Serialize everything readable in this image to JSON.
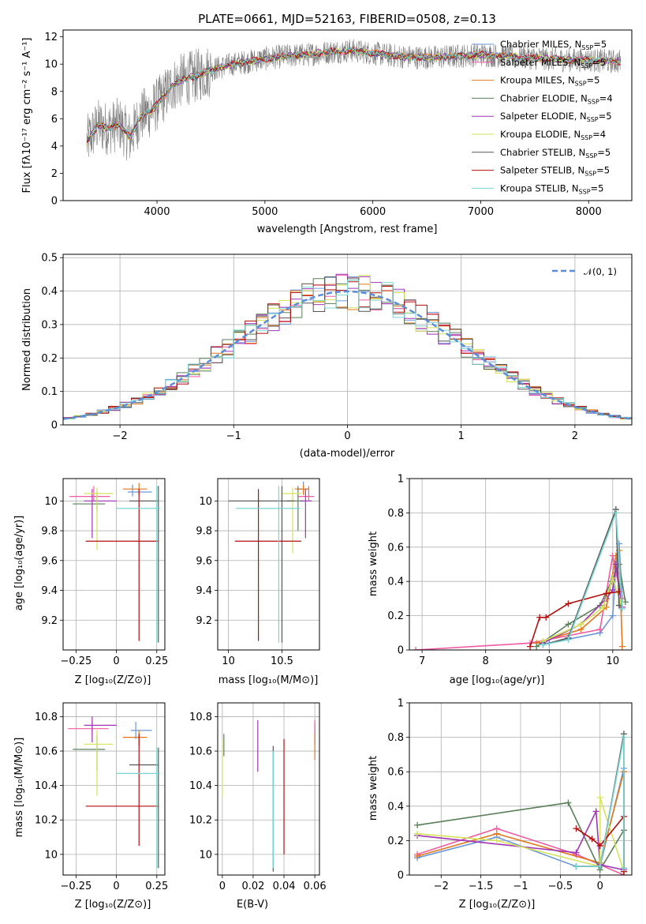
{
  "figure": {
    "title": "PLATE=0661, MJD=52163, FIBERID=0508, z=0.13"
  },
  "series": [
    {
      "name": "Chabrier MILES",
      "nssp": "5",
      "color": "#6d96d6"
    },
    {
      "name": "Salpeter MILES",
      "nssp": "5",
      "color": "#ef5ba1"
    },
    {
      "name": "Kroupa MILES",
      "nssp": "5",
      "color": "#e1771e"
    },
    {
      "name": "Chabrier ELODIE",
      "nssp": "4",
      "color": "#5a7f5a"
    },
    {
      "name": "Salpeter ELODIE",
      "nssp": "5",
      "color": "#9f35b5"
    },
    {
      "name": "Kroupa ELODIE",
      "nssp": "4",
      "color": "#d4e35a"
    },
    {
      "name": "Chabrier STELIB",
      "nssp": "5",
      "color": "#555555"
    },
    {
      "name": "Salpeter STELIB",
      "nssp": "5",
      "color": "#b30f0f"
    },
    {
      "name": "Kroupa STELIB",
      "nssp": "5",
      "color": "#7ad5d0"
    }
  ],
  "chart_data": [
    {
      "id": "spectrum",
      "type": "line",
      "xlabel": "wavelength [Angstrom, rest frame]",
      "ylabel": "Flux [fλ10⁻¹⁷ erg cm⁻² s⁻¹ A⁻¹]",
      "xlim": [
        3130,
        8400
      ],
      "ylim": [
        0,
        12.5
      ],
      "xticks": [
        4000,
        5000,
        6000,
        7000,
        8000
      ],
      "yticks": [
        0,
        2,
        4,
        6,
        8,
        10,
        12
      ],
      "grid": false,
      "legend": "right",
      "data_color": "#808080",
      "continuum_x": [
        3350,
        3450,
        3550,
        3650,
        3750,
        3850,
        3950,
        4050,
        4150,
        4250,
        4350,
        4450,
        4550,
        4700,
        4850,
        5000,
        5200,
        5400,
        5600,
        5800,
        6000,
        6200,
        6400,
        6600,
        6800,
        7000,
        7200,
        7400,
        7600,
        7800,
        8000,
        8200,
        8300
      ],
      "continuum_y": [
        4.3,
        5.5,
        5.3,
        5.6,
        4.6,
        6.2,
        6.6,
        7.5,
        8.5,
        8.9,
        9.1,
        9.4,
        9.7,
        10.0,
        10.2,
        10.4,
        10.6,
        10.7,
        10.9,
        11.0,
        10.8,
        10.6,
        10.5,
        10.5,
        10.6,
        10.7,
        10.6,
        10.5,
        10.4,
        10.3,
        10.3,
        10.2,
        10.2
      ]
    },
    {
      "id": "residuals",
      "type": "histogram",
      "xlabel": "(data-model)/error",
      "ylabel": "Normed distribution",
      "xlim": [
        -2.5,
        2.5
      ],
      "ylim": [
        0,
        0.51
      ],
      "xticks": [
        -2,
        -1,
        0,
        1,
        2
      ],
      "yticks": [
        0.0,
        0.1,
        0.2,
        0.3,
        0.4,
        0.5
      ],
      "grid": true,
      "legend": "top-right",
      "normal_label": "𝒩(0, 1)",
      "normal_color": "#5b8ed6",
      "bin_width": 0.1
    },
    {
      "id": "age_vs_Z",
      "type": "errorbar",
      "xlabel": "Z [log₁₀(Z/Z⊙)]",
      "ylabel": "age  [log₁₀(age/yr)]",
      "xlim": [
        -0.33,
        0.3
      ],
      "ylim": [
        9.0,
        10.15
      ],
      "xticks": [
        -0.25,
        0.0,
        0.25
      ],
      "yticks": [
        9.2,
        9.4,
        9.6,
        9.8,
        10.0
      ],
      "points": [
        {
          "s": 0,
          "x": 0.1,
          "y": 10.06,
          "xe": [
            0.03,
            0.12
          ],
          "ye": [
            0.03,
            0.05
          ]
        },
        {
          "s": 1,
          "x": -0.14,
          "y": 10.03,
          "xe": [
            0.15,
            0.1
          ],
          "ye": [
            0.03,
            0.07
          ]
        },
        {
          "s": 2,
          "x": 0.14,
          "y": 10.08,
          "xe": [
            0.1,
            0.05
          ],
          "ye": [
            0.04,
            0.04
          ]
        },
        {
          "s": 3,
          "x": -0.12,
          "y": 9.98,
          "xe": [
            0.15,
            0.05
          ],
          "ye": [
            0.05,
            0.08
          ]
        },
        {
          "s": 4,
          "x": -0.15,
          "y": 10.0,
          "xe": [
            0.05,
            0.15
          ],
          "ye": [
            0.25,
            0.08
          ]
        },
        {
          "s": 5,
          "x": -0.12,
          "y": 10.05,
          "xe": [
            0.08,
            0.1
          ],
          "ye": [
            0.38,
            0.04
          ]
        },
        {
          "s": 6,
          "x": 0.26,
          "y": 10.0,
          "xe": [
            0.18,
            0.0
          ],
          "ye": [
            0.95,
            0.1
          ]
        },
        {
          "s": 7,
          "x": 0.14,
          "y": 9.73,
          "xe": [
            0.33,
            0.12
          ],
          "ye": [
            0.67,
            0.35
          ]
        },
        {
          "s": 8,
          "x": 0.25,
          "y": 9.95,
          "xe": [
            0.25,
            0.02
          ],
          "ye": [
            0.9,
            0.15
          ]
        }
      ]
    },
    {
      "id": "age_vs_mass",
      "type": "errorbar",
      "xlabel": "mass [log₁₀(M/M⊙)]",
      "ylabel": "",
      "xlim": [
        9.9,
        10.85
      ],
      "ylim": [
        9.0,
        10.15
      ],
      "xticks": [
        10.0,
        10.5
      ],
      "yticks": [
        9.2,
        9.4,
        9.6,
        9.8,
        10.0
      ],
      "points": [
        {
          "s": 0,
          "x": 10.7,
          "y": 10.08,
          "xe": [
            0.05,
            0.05
          ],
          "ye": [
            0.03,
            0.05
          ]
        },
        {
          "s": 1,
          "x": 10.75,
          "y": 10.03,
          "xe": [
            0.1,
            0.05
          ],
          "ye": [
            0.03,
            0.07
          ]
        },
        {
          "s": 2,
          "x": 10.7,
          "y": 10.08,
          "xe": [
            0.08,
            0.05
          ],
          "ye": [
            0.04,
            0.03
          ]
        },
        {
          "s": 3,
          "x": 10.65,
          "y": 10.0,
          "xe": [
            0.1,
            0.05
          ],
          "ye": [
            0.2,
            0.1
          ]
        },
        {
          "s": 4,
          "x": 10.72,
          "y": 10.0,
          "xe": [
            0.05,
            0.06
          ],
          "ye": [
            0.25,
            0.08
          ]
        },
        {
          "s": 5,
          "x": 10.6,
          "y": 10.05,
          "xe": [
            0.1,
            0.08
          ],
          "ye": [
            0.4,
            0.04
          ]
        },
        {
          "s": 6,
          "x": 10.5,
          "y": 10.0,
          "xe": [
            0.5,
            0.12
          ],
          "ye": [
            0.95,
            0.1
          ]
        },
        {
          "s": 7,
          "x": 10.28,
          "y": 9.73,
          "xe": [
            0.22,
            0.4
          ],
          "ye": [
            0.67,
            0.35
          ]
        },
        {
          "s": 8,
          "x": 10.47,
          "y": 9.95,
          "xe": [
            0.4,
            0.2
          ],
          "ye": [
            0.9,
            0.15
          ]
        }
      ]
    },
    {
      "id": "weight_vs_age",
      "type": "line",
      "xlabel": "age  [log₁₀(age/yr)]",
      "ylabel": "mass weight",
      "xlim": [
        6.8,
        10.3
      ],
      "ylim": [
        0,
        1
      ],
      "xticks": [
        7,
        8,
        9,
        10
      ],
      "yticks": [
        0.0,
        0.2,
        0.4,
        0.6,
        0.8,
        1.0
      ],
      "grid": true,
      "lines": [
        {
          "s": 0,
          "x": [
            9.0,
            9.8,
            10.0,
            10.05,
            10.1,
            10.15
          ],
          "y": [
            0.04,
            0.1,
            0.2,
            0.5,
            0.62,
            0.3
          ]
        },
        {
          "s": 1,
          "x": [
            6.9,
            8.7,
            9.8,
            10.0,
            10.05,
            10.15
          ],
          "y": [
            0.0,
            0.04,
            0.12,
            0.55,
            0.45,
            0.3
          ]
        },
        {
          "s": 2,
          "x": [
            8.8,
            9.5,
            9.9,
            10.05,
            10.1,
            10.15
          ],
          "y": [
            0.04,
            0.12,
            0.25,
            0.55,
            0.58,
            0.02
          ]
        },
        {
          "s": 3,
          "x": [
            8.8,
            9.3,
            9.8,
            9.98,
            10.1,
            10.2
          ],
          "y": [
            0.02,
            0.15,
            0.26,
            0.4,
            0.5,
            0.28
          ]
        },
        {
          "s": 4,
          "x": [
            8.9,
            9.5,
            9.9,
            10.0,
            10.05,
            10.15
          ],
          "y": [
            0.04,
            0.15,
            0.3,
            0.35,
            0.5,
            0.25
          ]
        },
        {
          "s": 5,
          "x": [
            8.9,
            9.5,
            9.85,
            10.0,
            10.12
          ],
          "y": [
            0.05,
            0.15,
            0.25,
            0.42,
            0.28
          ]
        },
        {
          "s": 6,
          "x": [
            8.9,
            9.3,
            10.05,
            10.1
          ],
          "y": [
            0.03,
            0.07,
            0.82,
            0.26
          ]
        },
        {
          "s": 7,
          "x": [
            8.7,
            8.85,
            8.95,
            9.3,
            9.9,
            10.1
          ],
          "y": [
            0.02,
            0.19,
            0.19,
            0.27,
            0.33,
            0.34
          ]
        },
        {
          "s": 8,
          "x": [
            8.9,
            9.3,
            10.05,
            10.15
          ],
          "y": [
            0.03,
            0.06,
            0.8,
            0.24
          ]
        }
      ]
    },
    {
      "id": "mass_vs_Z",
      "type": "errorbar",
      "xlabel": "Z [log₁₀(Z/Z⊙)]",
      "ylabel": "mass [log₁₀(M/M⊙)]",
      "xlim": [
        -0.33,
        0.3
      ],
      "ylim": [
        9.88,
        10.88
      ],
      "xticks": [
        -0.25,
        0.0,
        0.25
      ],
      "yticks": [
        10.0,
        10.2,
        10.4,
        10.6,
        10.8
      ],
      "points": [
        {
          "s": 0,
          "x": 0.12,
          "y": 10.72,
          "xe": [
            0.03,
            0.1
          ],
          "ye": [
            0.05,
            0.05
          ]
        },
        {
          "s": 1,
          "x": -0.15,
          "y": 10.73,
          "xe": [
            0.15,
            0.1
          ],
          "ye": [
            0.04,
            0.05
          ]
        },
        {
          "s": 2,
          "x": 0.14,
          "y": 10.68,
          "xe": [
            0.1,
            0.05
          ],
          "ye": [
            0.05,
            0.04
          ]
        },
        {
          "s": 3,
          "x": -0.12,
          "y": 10.61,
          "xe": [
            0.15,
            0.05
          ],
          "ye": [
            0.12,
            0.08
          ]
        },
        {
          "s": 4,
          "x": -0.15,
          "y": 10.75,
          "xe": [
            0.05,
            0.15
          ],
          "ye": [
            0.1,
            0.05
          ]
        },
        {
          "s": 5,
          "x": -0.12,
          "y": 10.64,
          "xe": [
            0.08,
            0.1
          ],
          "ye": [
            0.3,
            0.08
          ]
        },
        {
          "s": 6,
          "x": 0.26,
          "y": 10.52,
          "xe": [
            0.18,
            0.0
          ],
          "ye": [
            0.6,
            0.1
          ]
        },
        {
          "s": 7,
          "x": 0.14,
          "y": 10.28,
          "xe": [
            0.33,
            0.12
          ],
          "ye": [
            0.23,
            0.42
          ]
        },
        {
          "s": 8,
          "x": 0.25,
          "y": 10.47,
          "xe": [
            0.25,
            0.02
          ],
          "ye": [
            0.55,
            0.15
          ]
        }
      ]
    },
    {
      "id": "mass_vs_ebv",
      "type": "errorbar",
      "xlabel": "E(B-V)",
      "ylabel": "",
      "xlim": [
        -0.003,
        0.063
      ],
      "ylim": [
        9.88,
        10.88
      ],
      "xticks": [
        0.0,
        0.02,
        0.04,
        0.06
      ],
      "yticks": [
        10.0,
        10.2,
        10.4,
        10.6,
        10.8
      ],
      "points": [
        {
          "s": 0,
          "x": 0.06,
          "y": 10.7,
          "ye": [
            0.06,
            0.06
          ]
        },
        {
          "s": 1,
          "x": 0.06,
          "y": 10.73,
          "ye": [
            0.05,
            0.05
          ]
        },
        {
          "s": 2,
          "x": 0.06,
          "y": 10.65,
          "ye": [
            0.1,
            0.05
          ]
        },
        {
          "s": 3,
          "x": 0.001,
          "y": 10.65,
          "ye": [
            0.08,
            0.05
          ]
        },
        {
          "s": 4,
          "x": 0.023,
          "y": 10.65,
          "ye": [
            0.17,
            0.13
          ]
        },
        {
          "s": 5,
          "x": 0.0,
          "y": 10.55,
          "ye": [
            0.22,
            0.12
          ]
        },
        {
          "s": 6,
          "x": 0.033,
          "y": 10.3,
          "ye": [
            0.4,
            0.33
          ]
        },
        {
          "s": 7,
          "x": 0.04,
          "y": 10.35,
          "ye": [
            0.35,
            0.32
          ]
        },
        {
          "s": 8,
          "x": 0.033,
          "y": 10.3,
          "ye": [
            0.38,
            0.3
          ]
        }
      ]
    },
    {
      "id": "weight_vs_Z",
      "type": "line",
      "xlabel": "Z [log₁₀(Z/Z⊙)]",
      "ylabel": "mass weight",
      "xlim": [
        -2.4,
        0.4
      ],
      "ylim": [
        0,
        1
      ],
      "xticks": [
        -2.0,
        -1.5,
        -1.0,
        -0.5,
        0.0
      ],
      "yticks": [
        0.0,
        0.2,
        0.4,
        0.6,
        0.8,
        1.0
      ],
      "grid": true,
      "lines": [
        {
          "s": 0,
          "x": [
            -2.3,
            -1.3,
            -0.3,
            0.0,
            0.3,
            0.3
          ],
          "y": [
            0.1,
            0.22,
            0.05,
            0.05,
            0.62,
            0.04
          ]
        },
        {
          "s": 1,
          "x": [
            -2.3,
            -1.3,
            -0.3,
            0.0,
            0.3
          ],
          "y": [
            0.12,
            0.27,
            0.12,
            0.06,
            0.0
          ]
        },
        {
          "s": 2,
          "x": [
            -2.3,
            -1.3,
            0.0,
            0.3,
            0.3
          ],
          "y": [
            0.11,
            0.24,
            0.07,
            0.6,
            0.02
          ]
        },
        {
          "s": 3,
          "x": [
            -2.3,
            -0.4,
            0.0,
            0.3,
            0.3
          ],
          "y": [
            0.29,
            0.42,
            0.03,
            0.26,
            0.02
          ]
        },
        {
          "s": 4,
          "x": [
            -2.3,
            -0.3,
            -0.05,
            0.0,
            0.3
          ],
          "y": [
            0.23,
            0.13,
            0.37,
            0.06,
            0.03
          ]
        },
        {
          "s": 5,
          "x": [
            -2.3,
            -1.3,
            0.0,
            0.0,
            0.3
          ],
          "y": [
            0.24,
            0.2,
            0.05,
            0.45,
            0.02
          ]
        },
        {
          "s": 6,
          "x": [
            -0.3,
            0.0,
            0.3,
            0.3
          ],
          "y": [
            0.05,
            0.05,
            0.82,
            0.04
          ]
        },
        {
          "s": 7,
          "x": [
            -0.3,
            -0.1,
            0.0,
            0.3,
            0.3
          ],
          "y": [
            0.27,
            0.21,
            0.17,
            0.34,
            0.02
          ]
        },
        {
          "s": 8,
          "x": [
            -0.3,
            0.0,
            0.3,
            0.3
          ],
          "y": [
            0.05,
            0.05,
            0.8,
            0.04
          ]
        }
      ]
    }
  ]
}
